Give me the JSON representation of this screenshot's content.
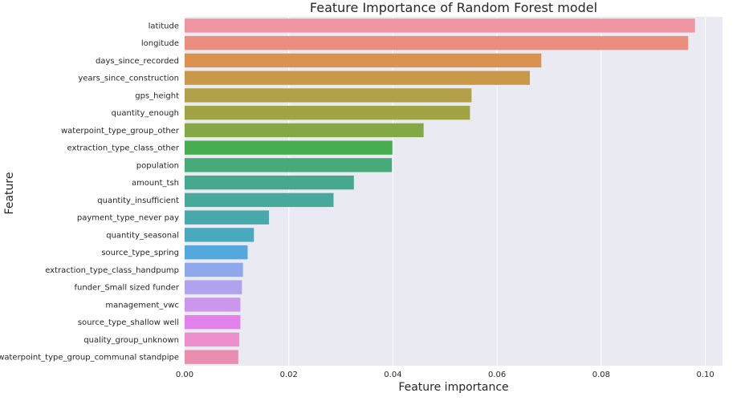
{
  "chart_data": {
    "type": "bar",
    "orientation": "horizontal",
    "title": "Feature Importance of Random Forest model",
    "xlabel": "Feature importance",
    "ylabel": "Feature",
    "xlim": [
      0,
      0.1033
    ],
    "xticks": [
      "0.00",
      "0.02",
      "0.04",
      "0.06",
      "0.08",
      "0.10"
    ],
    "grid": true,
    "background": "#eaeaf2",
    "categories": [
      "latitude",
      "longitude",
      "days_since_recorded",
      "years_since_construction",
      "gps_height",
      "quantity_enough",
      "waterpoint_type_group_other",
      "extraction_type_class_other",
      "population",
      "amount_tsh",
      "quantity_insufficient",
      "payment_type_never pay",
      "quantity_seasonal",
      "source_type_spring",
      "extraction_type_class_handpump",
      "funder_Small sized funder",
      "management_vwc",
      "source_type_shallow well",
      "quality_group_unknown",
      "waterpoint_type_group_communal standpipe"
    ],
    "values": [
      0.098,
      0.0967,
      0.0685,
      0.0663,
      0.0551,
      0.0548,
      0.0459,
      0.0399,
      0.0398,
      0.0325,
      0.0286,
      0.0162,
      0.0133,
      0.0121,
      0.0112,
      0.011,
      0.0107,
      0.0107,
      0.0105,
      0.0103
    ],
    "colors": [
      "#ef95a1",
      "#ec8e7d",
      "#db9150",
      "#c99949",
      "#b29f4a",
      "#a0a445",
      "#84a845",
      "#47ad50",
      "#47ab79",
      "#46a98e",
      "#47a99b",
      "#48a8aa",
      "#49a9bf",
      "#54a8db",
      "#8fa8ec",
      "#b1a2ef",
      "#cb97ed",
      "#e381ec",
      "#ec8fcc",
      "#e98db1"
    ]
  }
}
